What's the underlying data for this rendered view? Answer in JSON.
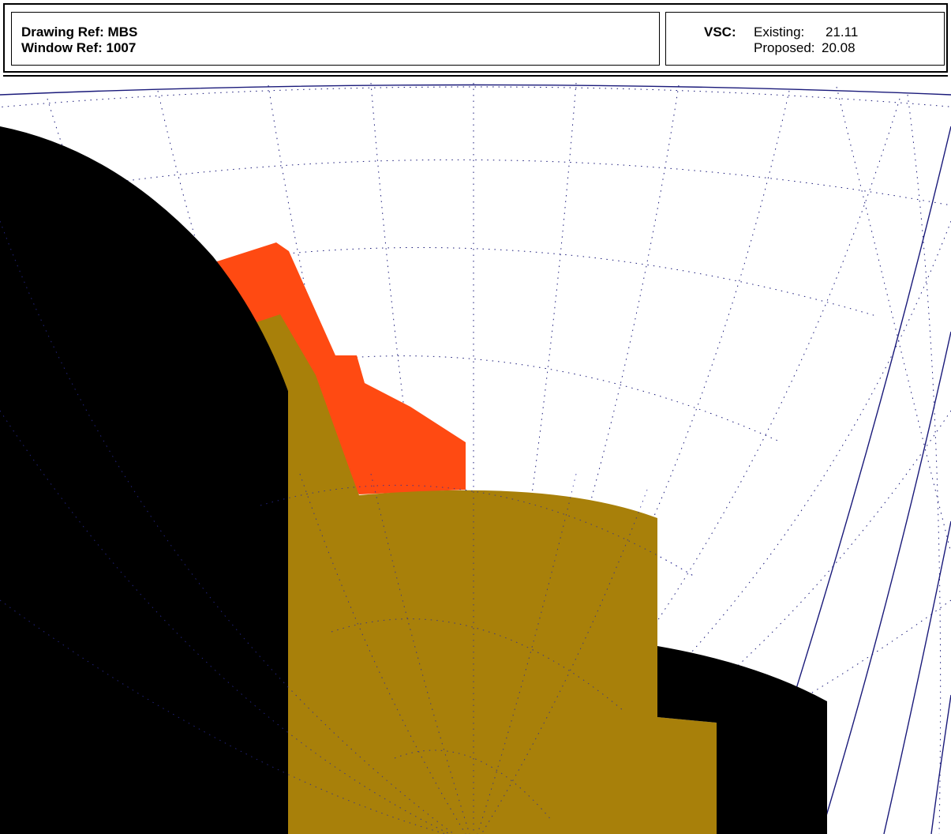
{
  "header": {
    "drawing_ref": "Drawing Ref: MBS",
    "window_ref": "Window Ref: 1007",
    "vsc_label": "VSC:",
    "existing_label": "Existing:",
    "existing_value": "21.11",
    "proposed_label": "Proposed:",
    "proposed_value": "20.08"
  },
  "colors": {
    "existing_obstruction": "#000000",
    "proposed_obstruction": "#a8800a",
    "lost_sky": "#ff4a12",
    "grid": "#1a1a7a"
  }
}
